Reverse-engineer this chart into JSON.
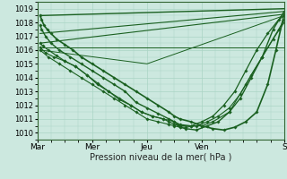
{
  "xlabel": "Pression niveau de la mer( hPa )",
  "ylim": [
    1009.5,
    1019.5
  ],
  "xlim": [
    0,
    4.5
  ],
  "yticks": [
    1010,
    1011,
    1012,
    1013,
    1014,
    1015,
    1016,
    1017,
    1018,
    1019
  ],
  "xtick_positions": [
    0,
    1,
    2,
    3,
    4.5
  ],
  "xtick_labels": [
    "Mar",
    "Mer",
    "Jeu",
    "Ven",
    "S"
  ],
  "bg_color": "#cce8df",
  "grid_color": "#aad4c4",
  "line_color": "#1a6020",
  "figsize": [
    3.2,
    2.0
  ],
  "dpi": 100,
  "series": [
    {
      "x": [
        0.05,
        4.5
      ],
      "y": [
        1018.5,
        1019.0
      ],
      "lw": 1.0,
      "markers": false
    },
    {
      "x": [
        0.05,
        4.5
      ],
      "y": [
        1017.2,
        1018.8
      ],
      "lw": 0.8,
      "markers": false
    },
    {
      "x": [
        0.05,
        4.5
      ],
      "y": [
        1016.5,
        1018.6
      ],
      "lw": 0.8,
      "markers": false
    },
    {
      "x": [
        0.05,
        4.5
      ],
      "y": [
        1016.2,
        1016.2
      ],
      "lw": 0.7,
      "markers": false
    },
    {
      "x": [
        0.05,
        2.0,
        4.5
      ],
      "y": [
        1016.0,
        1015.0,
        1018.5
      ],
      "lw": 0.7,
      "markers": false
    },
    {
      "x": [
        0.05,
        0.08,
        0.12,
        0.18,
        0.25,
        0.35,
        0.5,
        0.65,
        0.8,
        1.0,
        1.2,
        1.4,
        1.6,
        1.8,
        2.0,
        2.2,
        2.4,
        2.5,
        2.6,
        2.8,
        3.0,
        3.2,
        3.4,
        3.6,
        3.8,
        4.0,
        4.2,
        4.35,
        4.5
      ],
      "y": [
        1018.5,
        1018.2,
        1017.8,
        1017.5,
        1017.2,
        1016.8,
        1016.4,
        1016.0,
        1015.5,
        1015.0,
        1014.5,
        1014.0,
        1013.5,
        1013.0,
        1012.5,
        1012.0,
        1011.5,
        1011.2,
        1011.0,
        1010.8,
        1010.5,
        1010.3,
        1010.2,
        1010.4,
        1010.8,
        1011.5,
        1013.5,
        1016.0,
        1018.6
      ],
      "lw": 1.2,
      "markers": true
    },
    {
      "x": [
        0.05,
        0.08,
        0.15,
        0.25,
        0.4,
        0.6,
        0.8,
        1.0,
        1.2,
        1.4,
        1.6,
        1.8,
        2.0,
        2.2,
        2.4,
        2.5,
        2.55,
        2.6,
        2.7,
        2.9,
        3.1,
        3.3,
        3.5,
        3.7,
        3.9,
        4.1,
        4.3,
        4.5
      ],
      "y": [
        1017.8,
        1017.5,
        1017.0,
        1016.5,
        1016.0,
        1015.5,
        1015.0,
        1014.5,
        1014.0,
        1013.5,
        1013.0,
        1012.2,
        1011.8,
        1011.4,
        1011.0,
        1010.8,
        1010.6,
        1010.4,
        1010.3,
        1010.2,
        1010.5,
        1010.8,
        1011.5,
        1012.5,
        1014.0,
        1015.5,
        1017.5,
        1018.8
      ],
      "lw": 1.0,
      "markers": true
    },
    {
      "x": [
        0.05,
        0.1,
        0.2,
        0.35,
        0.5,
        0.7,
        0.9,
        1.1,
        1.3,
        1.5,
        1.7,
        1.9,
        2.1,
        2.3,
        2.4,
        2.5,
        2.6,
        2.8,
        3.0,
        3.2,
        3.4,
        3.6,
        3.8,
        4.0,
        4.2,
        4.4,
        4.5
      ],
      "y": [
        1016.5,
        1016.3,
        1016.0,
        1015.6,
        1015.2,
        1014.8,
        1014.2,
        1013.5,
        1013.0,
        1012.4,
        1012.0,
        1011.5,
        1011.2,
        1011.0,
        1010.8,
        1010.6,
        1010.5,
        1010.5,
        1010.8,
        1011.2,
        1012.0,
        1013.0,
        1014.5,
        1016.0,
        1017.2,
        1018.2,
        1018.5
      ],
      "lw": 0.9,
      "markers": true
    },
    {
      "x": [
        0.05,
        0.15,
        0.3,
        0.5,
        0.7,
        0.9,
        1.1,
        1.3,
        1.5,
        1.7,
        1.9,
        2.1,
        2.3,
        2.5,
        2.6,
        2.8,
        3.0,
        3.2,
        3.5,
        3.8,
        4.1,
        4.4,
        4.5
      ],
      "y": [
        1016.2,
        1015.8,
        1015.5,
        1015.2,
        1014.8,
        1014.2,
        1013.6,
        1013.0,
        1012.5,
        1012.0,
        1011.5,
        1011.2,
        1011.0,
        1010.8,
        1010.6,
        1010.5,
        1010.5,
        1010.8,
        1011.5,
        1013.5,
        1015.5,
        1017.5,
        1018.2
      ],
      "lw": 0.8,
      "markers": true
    },
    {
      "x": [
        0.05,
        0.2,
        0.4,
        0.6,
        0.8,
        1.0,
        1.2,
        1.4,
        1.6,
        1.8,
        2.0,
        2.2,
        2.4,
        2.5,
        2.6,
        2.7,
        2.9,
        3.1,
        3.3,
        3.5,
        3.7,
        3.9,
        4.1,
        4.3,
        4.5
      ],
      "y": [
        1016.0,
        1015.5,
        1015.0,
        1014.5,
        1014.0,
        1013.5,
        1013.0,
        1012.5,
        1012.0,
        1011.5,
        1011.0,
        1010.8,
        1010.6,
        1010.5,
        1010.4,
        1010.4,
        1010.5,
        1010.8,
        1011.2,
        1011.8,
        1012.8,
        1014.2,
        1015.5,
        1016.8,
        1018.0
      ],
      "lw": 0.8,
      "markers": true
    }
  ]
}
